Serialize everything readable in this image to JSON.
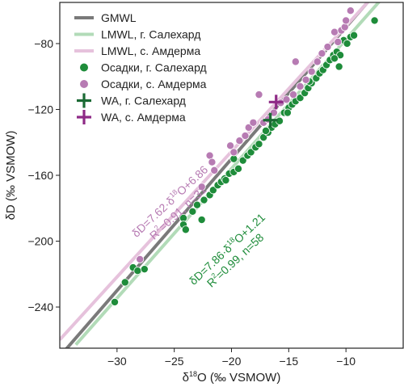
{
  "chart_data": {
    "type": "scatter",
    "xlabel": {
      "main": "δ",
      "sup": "18",
      "rest": "O (‰ VSMOW)"
    },
    "ylabel": "δD (‰ VSMOW)",
    "xlim": [
      -35,
      -5
    ],
    "ylim": [
      -265,
      -55
    ],
    "xticks": [
      -30,
      -25,
      -20,
      -15,
      -10
    ],
    "yticks": [
      -80,
      -120,
      -160,
      -200,
      -240
    ],
    "xtick_labels": [
      "−30",
      "−25",
      "−20",
      "−15",
      "−10"
    ],
    "ytick_labels": [
      "−80",
      "−120",
      "−160",
      "−200",
      "−240"
    ],
    "grid": false,
    "legend_position": "top-left",
    "colors": {
      "gmwl": "#7a7a7a",
      "lmwl_salekhard": "#b2dbb8",
      "lmwl_amderma": "#e6c2dc",
      "salekhard": "#1e8c3a",
      "amderma": "#b77bb3",
      "wa_salekhard": "#1b6a34",
      "wa_amderma": "#8e2a86"
    },
    "lines": [
      {
        "name": "GMWL",
        "slope": 8,
        "intercept": 10,
        "x_range": [
          -34.7,
          -5
        ],
        "key": "gmwl",
        "width": 4
      },
      {
        "name": "LMWL, г. Салехард",
        "slope": 7.86,
        "intercept": 1.21,
        "x_range": [
          -33.6,
          -5
        ],
        "key": "lmwl_salekhard",
        "width": 4
      },
      {
        "name": "LMWL, с. Амдерма",
        "slope": 7.62,
        "intercept": 6.86,
        "x_range": [
          -35,
          -5
        ],
        "key": "lmwl_amderma",
        "width": 4
      }
    ],
    "series": [
      {
        "name": "Осадки, г. Салехард",
        "key": "salekhard",
        "points": [
          [
            -30.2,
            -237
          ],
          [
            -29.3,
            -225
          ],
          [
            -28.6,
            -216
          ],
          [
            -28.2,
            -218
          ],
          [
            -27.6,
            -217
          ],
          [
            -24.2,
            -186
          ],
          [
            -24.2,
            -190
          ],
          [
            -24.0,
            -193
          ],
          [
            -23.4,
            -182
          ],
          [
            -23.0,
            -178
          ],
          [
            -22.6,
            -187
          ],
          [
            -22.4,
            -175
          ],
          [
            -21.9,
            -172
          ],
          [
            -21.6,
            -169
          ],
          [
            -21.2,
            -166
          ],
          [
            -20.9,
            -164
          ],
          [
            -20.6,
            -162
          ],
          [
            -20.2,
            -159
          ],
          [
            -19.8,
            -158
          ],
          [
            -19.4,
            -156
          ],
          [
            -19.0,
            -151
          ],
          [
            -18.6,
            -148
          ],
          [
            -18.3,
            -146
          ],
          [
            -17.9,
            -143
          ],
          [
            -17.6,
            -141
          ],
          [
            -17.2,
            -137
          ],
          [
            -16.8,
            -134
          ],
          [
            -16.5,
            -131
          ],
          [
            -16.2,
            -129
          ],
          [
            -15.8,
            -127
          ],
          [
            -15.4,
            -122
          ],
          [
            -15.0,
            -119
          ],
          [
            -14.7,
            -117
          ],
          [
            -14.4,
            -115
          ],
          [
            -14.0,
            -113
          ],
          [
            -13.6,
            -110
          ],
          [
            -13.3,
            -107
          ],
          [
            -13.0,
            -104
          ],
          [
            -12.6,
            -101
          ],
          [
            -12.3,
            -98
          ],
          [
            -12.0,
            -96
          ],
          [
            -11.7,
            -93
          ],
          [
            -11.4,
            -90
          ],
          [
            -11.1,
            -87
          ],
          [
            -10.8,
            -85
          ],
          [
            -10.5,
            -87
          ],
          [
            -10.2,
            -78
          ],
          [
            -9.9,
            -80
          ],
          [
            -9.6,
            -76
          ],
          [
            -9.3,
            -75
          ],
          [
            -7.5,
            -66
          ],
          [
            -13.2,
            -103
          ],
          [
            -15.1,
            -122
          ],
          [
            -17.0,
            -133
          ],
          [
            -19.8,
            -150
          ],
          [
            -20.5,
            -163
          ],
          [
            -11.0,
            -89
          ],
          [
            -10.6,
            -94
          ]
        ]
      },
      {
        "name": "Осадки, с. Амдерма",
        "key": "amderma",
        "points": [
          [
            -28.0,
            -211
          ],
          [
            -22.6,
            -167
          ],
          [
            -21.9,
            -148
          ],
          [
            -21.7,
            -152
          ],
          [
            -21.5,
            -157
          ],
          [
            -20.1,
            -142
          ],
          [
            -19.3,
            -139
          ],
          [
            -18.8,
            -136
          ],
          [
            -18.5,
            -131
          ],
          [
            -18.1,
            -128
          ],
          [
            -17.6,
            -111
          ],
          [
            -17.2,
            -128
          ],
          [
            -16.8,
            -126
          ],
          [
            -16.3,
            -122
          ],
          [
            -15.7,
            -116
          ],
          [
            -15.2,
            -114
          ],
          [
            -14.6,
            -111
          ],
          [
            -14.4,
            -91
          ],
          [
            -14.0,
            -106
          ],
          [
            -13.5,
            -102
          ],
          [
            -13.0,
            -97
          ],
          [
            -12.5,
            -91
          ],
          [
            -12.1,
            -86
          ],
          [
            -11.6,
            -82
          ],
          [
            -11.0,
            -73
          ],
          [
            -10.7,
            -79
          ],
          [
            -10.4,
            -72
          ],
          [
            -10.1,
            -70
          ],
          [
            -10.0,
            -66
          ],
          [
            -9.6,
            -60
          ],
          [
            -19.8,
            -146
          ]
        ]
      }
    ],
    "wa_points": [
      {
        "name": "WA, г. Салехард",
        "key": "wa_salekhard",
        "x": -16.6,
        "y": -126.5
      },
      {
        "name": "WA, с. Амдерма",
        "key": "wa_amderma",
        "x": -16.1,
        "y": -115.5
      }
    ],
    "legend": [
      {
        "label": "GMWL",
        "marker": "line",
        "key": "gmwl"
      },
      {
        "label": "LMWL, г. Салехард",
        "marker": "line",
        "key": "lmwl_salekhard"
      },
      {
        "label": "LMWL, с. Амдерма",
        "marker": "line",
        "key": "lmwl_amderma"
      },
      {
        "label": "Осадки, г. Салехард",
        "marker": "circle",
        "key": "salekhard"
      },
      {
        "label": "Осадки, с. Амдерма",
        "marker": "circle",
        "key": "amderma"
      },
      {
        "label": "WA, г. Салехард",
        "marker": "plus",
        "key": "wa_salekhard"
      },
      {
        "label": "WA, с. Амдерма",
        "marker": "plus",
        "key": "wa_amderma"
      }
    ],
    "annotations": [
      {
        "key": "amderma",
        "anchor": [
          -28.3,
          -198
        ],
        "angle_deg": -43,
        "line1": {
          "t1": "δD=7.62·δ",
          "sup": "18",
          "t2": "O+6.86"
        },
        "line2": {
          "t1": "R",
          "sup": "2",
          "t2": "=0.91, n=31"
        }
      },
      {
        "key": "salekhard",
        "anchor": [
          -23.3,
          -227
        ],
        "angle_deg": -43,
        "line1": {
          "t1": "δD=7.86·δ",
          "sup": "18",
          "t2": "O+1.21"
        },
        "line2": {
          "t1": "R",
          "sup": "2",
          "t2": "=0.99, n=58"
        }
      }
    ]
  }
}
